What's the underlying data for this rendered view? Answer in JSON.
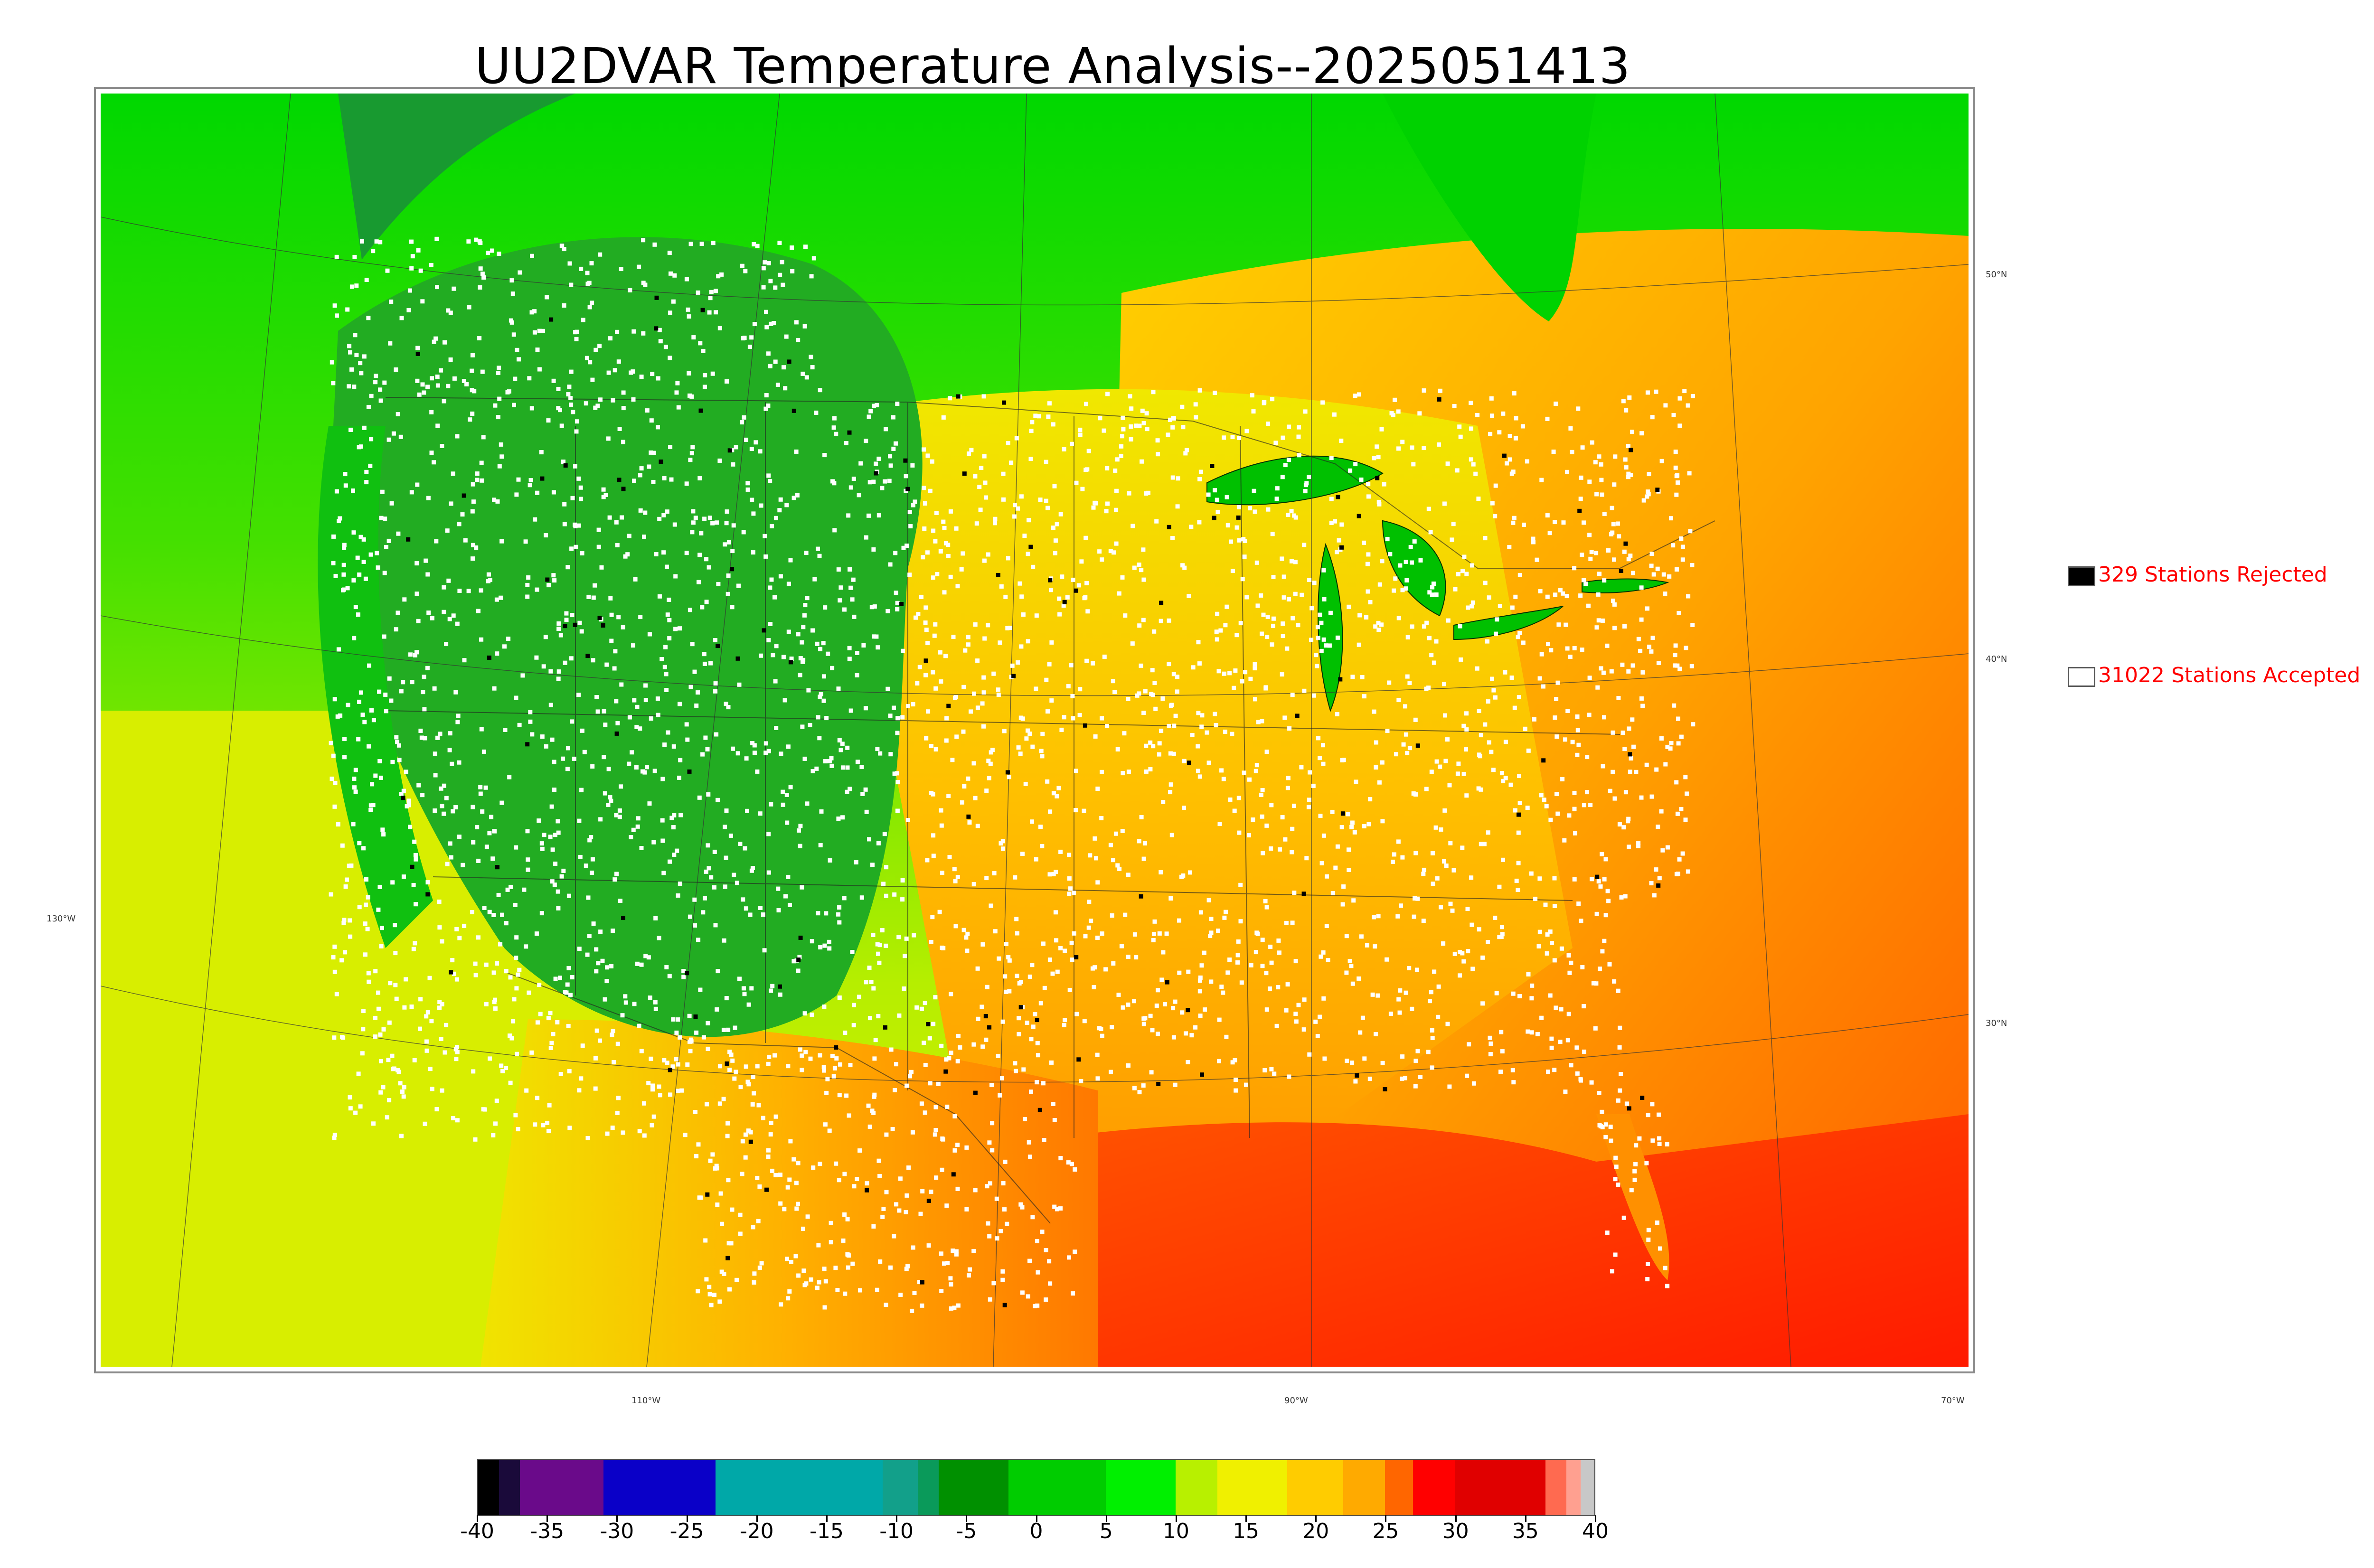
{
  "title": "UU2DVAR Temperature Analysis--2025051413",
  "legend": {
    "rejected": {
      "label": "329 Stations Rejected",
      "fill": "#000000"
    },
    "accepted": {
      "label": "31022 Stations Accepted",
      "fill": "#ffffff"
    }
  },
  "lat_labels": [
    "50°N",
    "40°N",
    "30°N",
    "130°W"
  ],
  "lon_labels": [
    "110°W",
    "90°W",
    "70°W"
  ],
  "colorbar": {
    "ticks": [
      "-40",
      "-35",
      "-30",
      "-25",
      "-20",
      "-15",
      "-10",
      "-5",
      "0",
      "5",
      "10",
      "15",
      "20",
      "25",
      "30",
      "35",
      "40"
    ],
    "segments": [
      {
        "from": -40,
        "to": -38.5,
        "color": "#000000"
      },
      {
        "from": -38.5,
        "to": -37,
        "color": "#1a0a3a"
      },
      {
        "from": -37,
        "to": -31,
        "color": "#6a0a8a"
      },
      {
        "from": -31,
        "to": -23,
        "color": "#0a00c8"
      },
      {
        "from": -23,
        "to": -11,
        "color": "#00a8a8"
      },
      {
        "from": -11,
        "to": -8.5,
        "color": "#12a08a"
      },
      {
        "from": -8.5,
        "to": -7,
        "color": "#0a9a5a"
      },
      {
        "from": -7,
        "to": -2,
        "color": "#009000"
      },
      {
        "from": -2,
        "to": 5,
        "color": "#00cc00"
      },
      {
        "from": 5,
        "to": 10,
        "color": "#00f000"
      },
      {
        "from": 10,
        "to": 13,
        "color": "#b8f000"
      },
      {
        "from": 13,
        "to": 18,
        "color": "#f0f000"
      },
      {
        "from": 18,
        "to": 22,
        "color": "#ffcc00"
      },
      {
        "from": 22,
        "to": 25,
        "color": "#ffaa00"
      },
      {
        "from": 25,
        "to": 27,
        "color": "#ff6600"
      },
      {
        "from": 27,
        "to": 30,
        "color": "#ff0000"
      },
      {
        "from": 30,
        "to": 36.5,
        "color": "#e00000"
      },
      {
        "from": 36.5,
        "to": 38,
        "color": "#ff6a50"
      },
      {
        "from": 38,
        "to": 39,
        "color": "#ffa090"
      },
      {
        "from": 39,
        "to": 40,
        "color": "#c8c8c8"
      }
    ],
    "range": [
      -40,
      40
    ]
  },
  "map_colors": {
    "west_cool": "#22a922",
    "north_green": "#00d400",
    "mid_yellow": "#f2ea00",
    "plains_orange": "#ffb400",
    "gulf_red": "#ff3200",
    "pacific": "#c8ee00",
    "atlantic": "#ff8a00",
    "lake": "#00c800",
    "station_accepted": "#ffffff",
    "station_rejected": "#000000"
  }
}
